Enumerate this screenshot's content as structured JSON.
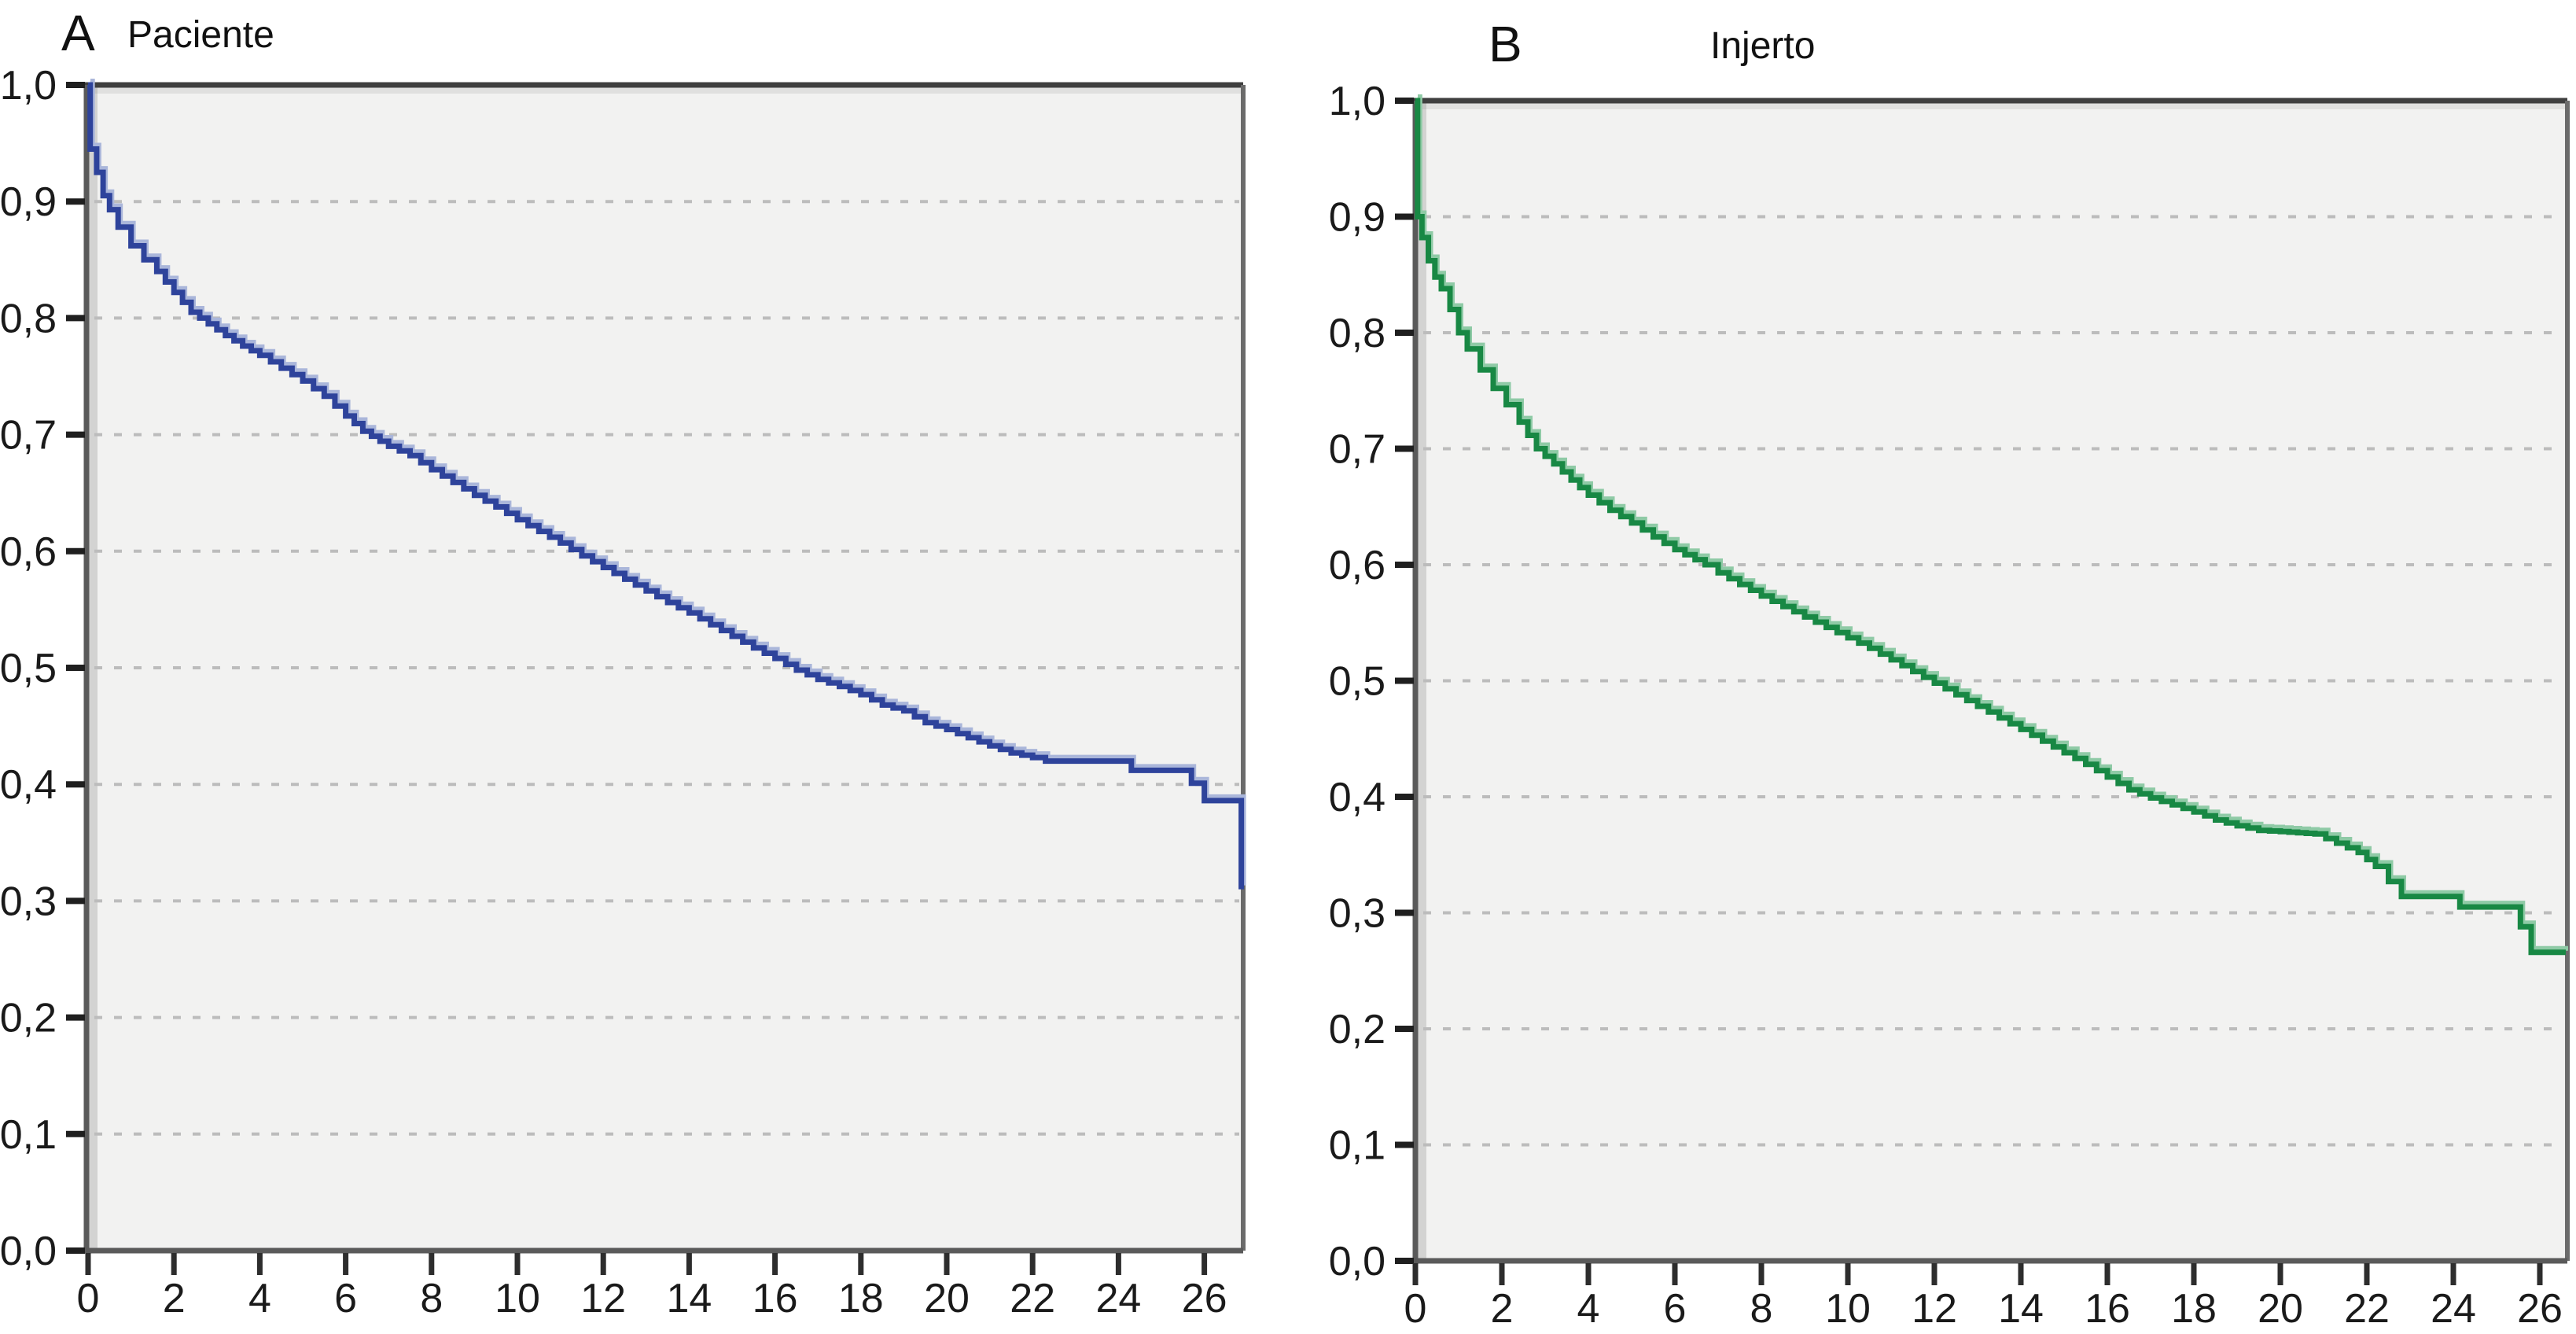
{
  "figure": {
    "description": "Two-panel Kaplan-Meier survival curves",
    "background": "#ffffff"
  },
  "chart_data": [
    {
      "type": "line",
      "subtype": "kaplan-meier-step",
      "panel_label": "A",
      "title": "Paciente",
      "xlabel": "",
      "ylabel": "",
      "xlim": [
        0,
        26.9
      ],
      "ylim": [
        0.0,
        1.0
      ],
      "grid": "horizontal dashed at 0.1 through 0.9",
      "legend_position": "none",
      "x_tick_labels": [
        "0",
        "2",
        "4",
        "6",
        "8",
        "10",
        "12",
        "14",
        "16",
        "18",
        "20",
        "22",
        "24",
        "26"
      ],
      "y_tick_labels_top_to_bottom": [
        "1,0",
        "0,9",
        "0,8",
        "0,7",
        "0,6",
        "0,5",
        "0,4",
        "0,3",
        "0,2",
        "0,1",
        "0,0"
      ],
      "plot_bg": "#f2f2f1",
      "frame_color": "#5a5a5a",
      "frame_top_color": "#3f3f3f",
      "grid_color": "#bcbcbc",
      "tick_color": "#1f1f1f",
      "tick_label_color": "#1a1a1a",
      "line_color": "#2e439b",
      "line_highlight": "#aab6da",
      "series": [
        {
          "name": "Paciente",
          "points": [
            [
              0,
              1.0
            ],
            [
              0.05,
              0.945
            ],
            [
              0.2,
              0.925
            ],
            [
              0.35,
              0.905
            ],
            [
              0.5,
              0.893
            ],
            [
              0.7,
              0.878
            ],
            [
              1.0,
              0.862
            ],
            [
              1.3,
              0.85
            ],
            [
              1.6,
              0.84
            ],
            [
              2.0,
              0.822
            ],
            [
              2.4,
              0.805
            ],
            [
              2.8,
              0.795
            ],
            [
              3.2,
              0.785
            ],
            [
              3.6,
              0.776
            ],
            [
              4.0,
              0.768
            ],
            [
              4.5,
              0.757
            ],
            [
              5.0,
              0.746
            ],
            [
              5.5,
              0.733
            ],
            [
              6.0,
              0.716
            ],
            [
              6.4,
              0.703
            ],
            [
              7.0,
              0.69
            ],
            [
              7.5,
              0.682
            ],
            [
              8.0,
              0.67
            ],
            [
              8.5,
              0.659
            ],
            [
              9.0,
              0.648
            ],
            [
              9.5,
              0.638
            ],
            [
              10.0,
              0.627
            ],
            [
              10.5,
              0.617
            ],
            [
              11.0,
              0.607
            ],
            [
              11.5,
              0.596
            ],
            [
              12.0,
              0.586
            ],
            [
              12.5,
              0.576
            ],
            [
              13.0,
              0.566
            ],
            [
              13.5,
              0.556
            ],
            [
              14.0,
              0.547
            ],
            [
              14.5,
              0.537
            ],
            [
              15.0,
              0.527
            ],
            [
              15.5,
              0.517
            ],
            [
              16.0,
              0.508
            ],
            [
              16.5,
              0.498
            ],
            [
              17.0,
              0.49
            ],
            [
              17.5,
              0.484
            ],
            [
              18.0,
              0.477
            ],
            [
              18.5,
              0.468
            ],
            [
              19.0,
              0.463
            ],
            [
              19.5,
              0.453
            ],
            [
              20.0,
              0.447
            ],
            [
              20.5,
              0.44
            ],
            [
              21.0,
              0.433
            ],
            [
              21.5,
              0.427
            ],
            [
              22.0,
              0.423
            ],
            [
              22.3,
              0.42
            ],
            [
              24.2,
              0.42
            ],
            [
              24.3,
              0.412
            ],
            [
              25.6,
              0.412
            ],
            [
              25.7,
              0.401
            ],
            [
              25.95,
              0.401
            ],
            [
              26.0,
              0.386
            ],
            [
              26.82,
              0.386
            ],
            [
              26.86,
              0.31
            ]
          ]
        }
      ]
    },
    {
      "type": "line",
      "subtype": "kaplan-meier-step",
      "panel_label": "B",
      "title": "Injerto",
      "xlabel": "",
      "ylabel": "",
      "xlim": [
        0,
        26.6
      ],
      "ylim": [
        0.0,
        1.0
      ],
      "grid": "horizontal dashed at 0.1 through 0.9",
      "legend_position": "none",
      "x_tick_labels": [
        "0",
        "2",
        "4",
        "6",
        "8",
        "10",
        "12",
        "14",
        "16",
        "18",
        "20",
        "22",
        "24",
        "26"
      ],
      "y_tick_labels_top_to_bottom": [
        "1,0",
        "0,9",
        "0,8",
        "0,7",
        "0,6",
        "0,5",
        "0,4",
        "0,3",
        "0,2",
        "0,1",
        "0,0"
      ],
      "plot_bg": "#f2f2f1",
      "frame_color": "#5a5a5a",
      "frame_top_color": "#3f3f3f",
      "grid_color": "#bcbcbc",
      "tick_color": "#1f1f1f",
      "tick_label_color": "#1a1a1a",
      "line_color": "#188844",
      "line_highlight": "#8fcaa6",
      "series": [
        {
          "name": "Injerto",
          "points": [
            [
              0,
              1.0
            ],
            [
              0.05,
              0.9
            ],
            [
              0.15,
              0.882
            ],
            [
              0.3,
              0.862
            ],
            [
              0.45,
              0.848
            ],
            [
              0.6,
              0.838
            ],
            [
              0.8,
              0.82
            ],
            [
              1.0,
              0.8
            ],
            [
              1.2,
              0.786
            ],
            [
              1.5,
              0.768
            ],
            [
              1.8,
              0.752
            ],
            [
              2.1,
              0.738
            ],
            [
              2.4,
              0.723
            ],
            [
              2.8,
              0.7
            ],
            [
              3.2,
              0.687
            ],
            [
              3.6,
              0.673
            ],
            [
              4.0,
              0.66
            ],
            [
              4.5,
              0.647
            ],
            [
              5.0,
              0.636
            ],
            [
              5.5,
              0.624
            ],
            [
              6.0,
              0.613
            ],
            [
              6.7,
              0.6
            ],
            [
              7.0,
              0.593
            ],
            [
              7.5,
              0.583
            ],
            [
              8.0,
              0.573
            ],
            [
              8.5,
              0.564
            ],
            [
              9.0,
              0.555
            ],
            [
              9.5,
              0.546
            ],
            [
              10.0,
              0.537
            ],
            [
              10.5,
              0.528
            ],
            [
              11.0,
              0.518
            ],
            [
              11.5,
              0.508
            ],
            [
              12.0,
              0.498
            ],
            [
              12.5,
              0.488
            ],
            [
              13.0,
              0.478
            ],
            [
              13.5,
              0.468
            ],
            [
              14.0,
              0.458
            ],
            [
              14.5,
              0.448
            ],
            [
              15.0,
              0.438
            ],
            [
              15.5,
              0.428
            ],
            [
              16.0,
              0.417
            ],
            [
              16.5,
              0.406
            ],
            [
              17.0,
              0.399
            ],
            [
              17.5,
              0.393
            ],
            [
              18.0,
              0.387
            ],
            [
              18.5,
              0.38
            ],
            [
              19.0,
              0.375
            ],
            [
              19.5,
              0.371
            ],
            [
              20.0,
              0.37
            ],
            [
              20.8,
              0.368
            ],
            [
              21.3,
              0.36
            ],
            [
              21.8,
              0.352
            ],
            [
              22.2,
              0.34
            ],
            [
              22.5,
              0.327
            ],
            [
              22.8,
              0.314
            ],
            [
              24.1,
              0.314
            ],
            [
              24.15,
              0.305
            ],
            [
              25.5,
              0.305
            ],
            [
              25.55,
              0.288
            ],
            [
              25.75,
              0.288
            ],
            [
              25.8,
              0.266
            ],
            [
              26.6,
              0.266
            ]
          ]
        }
      ]
    }
  ]
}
